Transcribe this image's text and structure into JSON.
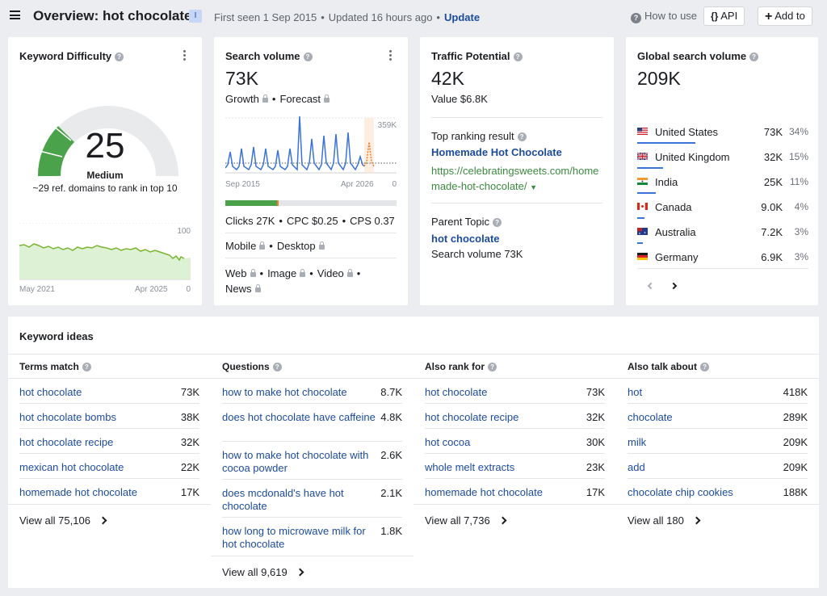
{
  "header": {
    "title": "Overview: hot chocolate",
    "badge": "I",
    "first_seen": "First seen 1 Sep 2015",
    "updated": "Updated 16 hours ago",
    "update_link": "Update",
    "how_to_use": "How to use",
    "api": "API",
    "add_to": "Add to"
  },
  "kd": {
    "title": "Keyword Difficulty",
    "value": "25",
    "level": "Medium",
    "note": "~29 ref. domains to rank in top 10",
    "chart_max": "100",
    "chart_min": "0",
    "date_start": "May 2021",
    "date_end": "Apr 2025"
  },
  "sv": {
    "title": "Search volume",
    "value": "73K",
    "growth": "Growth",
    "forecast": "Forecast",
    "chart_max": "359K",
    "chart_min": "0",
    "date_start": "Sep 2015",
    "date_end": "Apr 2026",
    "clicks": "Clicks 27K",
    "cpc": "CPC $0.25",
    "cps": "CPS 0.37",
    "mobile": "Mobile",
    "desktop": "Desktop",
    "web": "Web",
    "image": "Image",
    "video": "Video",
    "news": "News"
  },
  "tp": {
    "title": "Traffic Potential",
    "value": "42K",
    "value_label": "Value $6.8K",
    "top_result_label": "Top ranking result",
    "top_result_title": "Homemade Hot Chocolate",
    "top_result_url_1": "https://celebratingsweets.com/home",
    "top_result_url_2": "made-hot-chocolate/",
    "parent_label": "Parent Topic",
    "parent_topic": "hot chocolate",
    "parent_volume": "Search volume 73K"
  },
  "gsv": {
    "title": "Global search volume",
    "value": "209K",
    "countries": [
      {
        "name": "United States",
        "value": "73K",
        "pct": "34%"
      },
      {
        "name": "United Kingdom",
        "value": "32K",
        "pct": "15%"
      },
      {
        "name": "India",
        "value": "25K",
        "pct": "11%"
      },
      {
        "name": "Canada",
        "value": "9.0K",
        "pct": "4%"
      },
      {
        "name": "Australia",
        "value": "7.2K",
        "pct": "3%"
      },
      {
        "name": "Germany",
        "value": "6.9K",
        "pct": "3%"
      }
    ]
  },
  "ideas": {
    "title": "Keyword ideas",
    "columns": [
      {
        "header": "Terms match",
        "items": [
          {
            "kw": "hot chocolate",
            "vol": "73K"
          },
          {
            "kw": "hot chocolate bombs",
            "vol": "38K"
          },
          {
            "kw": "hot chocolate recipe",
            "vol": "32K"
          },
          {
            "kw": "mexican hot chocolate",
            "vol": "22K"
          },
          {
            "kw": "homemade hot chocolate",
            "vol": "17K"
          }
        ],
        "view_all": "View all 75,106"
      },
      {
        "header": "Questions",
        "items": [
          {
            "kw": "how to make hot chocolate",
            "vol": "8.7K"
          },
          {
            "kw": "does hot chocolate have caffeine",
            "vol": "4.8K"
          },
          {
            "kw": "how to make hot chocolate with cocoa powder",
            "vol": "2.6K"
          },
          {
            "kw": "does mcdonald's have hot chocolate",
            "vol": "2.1K"
          },
          {
            "kw": "how long to microwave milk for hot chocolate",
            "vol": "1.8K"
          }
        ],
        "view_all": "View all 9,619"
      },
      {
        "header": "Also rank for",
        "items": [
          {
            "kw": "hot chocolate",
            "vol": "73K"
          },
          {
            "kw": "hot chocolate recipe",
            "vol": "32K"
          },
          {
            "kw": "hot cocoa",
            "vol": "30K"
          },
          {
            "kw": "whole melt extracts",
            "vol": "23K"
          },
          {
            "kw": "homemade hot chocolate",
            "vol": "17K"
          }
        ],
        "view_all": "View all 7,736"
      },
      {
        "header": "Also talk about",
        "items": [
          {
            "kw": "hot",
            "vol": "418K"
          },
          {
            "kw": "chocolate",
            "vol": "289K"
          },
          {
            "kw": "milk",
            "vol": "209K"
          },
          {
            "kw": "add",
            "vol": "209K"
          },
          {
            "kw": "chocolate chip cookies",
            "vol": "188K"
          }
        ],
        "view_all": "View all 180"
      }
    ]
  }
}
